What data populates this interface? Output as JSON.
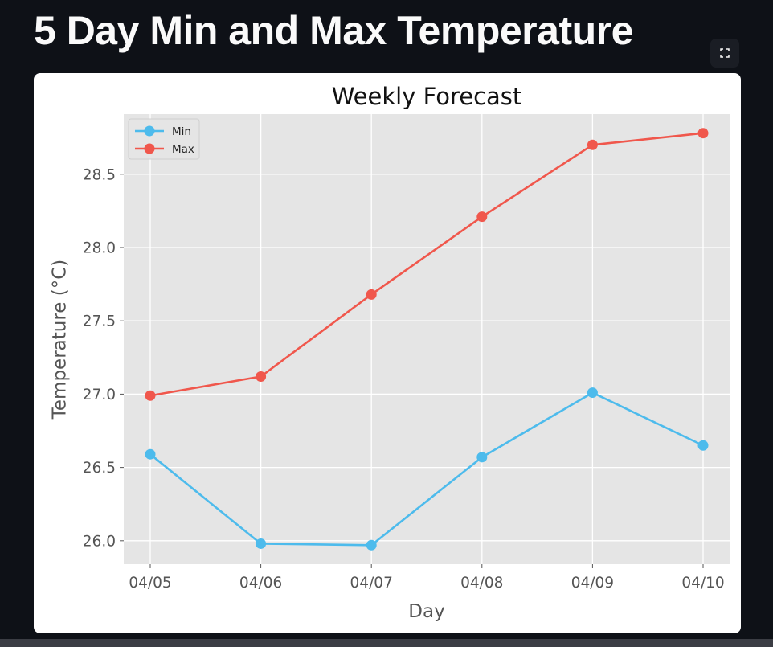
{
  "page": {
    "title": "5 Day Min and Max Temperature",
    "fullscreen_icon": "fullscreen-expand-icon"
  },
  "chart_data": {
    "type": "line",
    "title": "Weekly Forecast",
    "xlabel": "Day",
    "ylabel": "Temperature (°C)",
    "categories": [
      "04/05",
      "04/06",
      "04/07",
      "04/08",
      "04/09",
      "04/10"
    ],
    "series": [
      {
        "name": "Min",
        "color": "#4dbbec",
        "values": [
          26.59,
          25.98,
          25.97,
          26.57,
          27.01,
          26.65
        ]
      },
      {
        "name": "Max",
        "color": "#f0574c",
        "values": [
          26.99,
          27.12,
          27.68,
          28.21,
          28.7,
          28.78
        ]
      }
    ],
    "yticks": [
      "26.0",
      "26.5",
      "27.0",
      "27.5",
      "28.0",
      "28.5"
    ],
    "ylim": [
      25.84,
      28.91
    ],
    "grid": true,
    "legend": "top-left",
    "colors": {
      "plot_background": "#e5e5e5",
      "grid": "#ffffff",
      "text": "#555555"
    }
  }
}
